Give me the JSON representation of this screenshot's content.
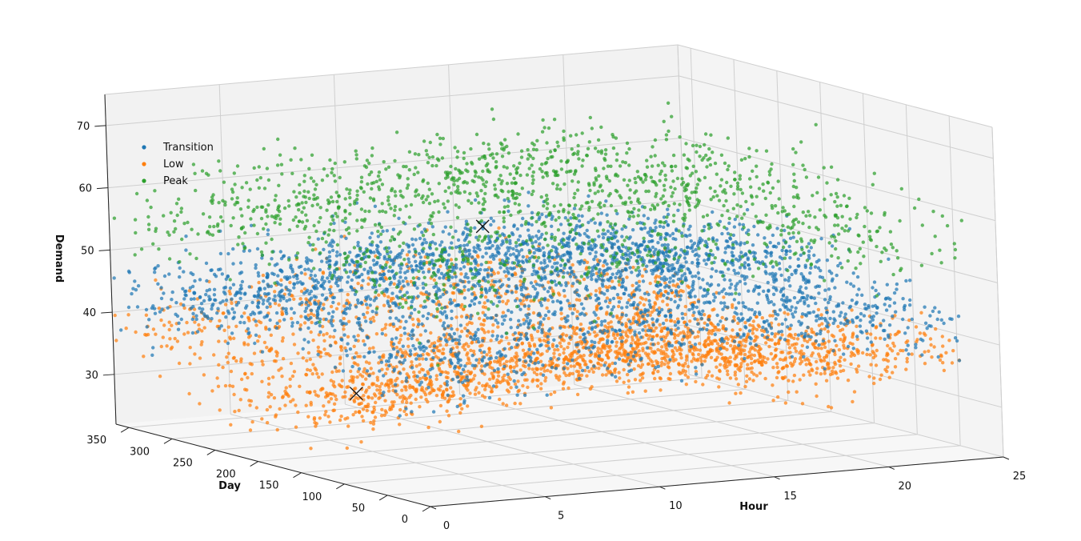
{
  "chart_data": {
    "type": "scatter",
    "title": "",
    "projection": "3d",
    "axes": {
      "x": {
        "label": "Hour",
        "ticks": [
          0,
          5,
          10,
          15,
          20,
          25
        ],
        "range": [
          0,
          25
        ]
      },
      "y": {
        "label": "Day",
        "ticks": [
          0,
          50,
          100,
          150,
          200,
          250,
          300,
          350
        ],
        "range": [
          0,
          365
        ]
      },
      "z": {
        "label": "Demand",
        "ticks": [
          30,
          40,
          50,
          60,
          70
        ],
        "range": [
          22,
          75
        ]
      }
    },
    "grid": true,
    "legend": {
      "position": "upper-left",
      "entries": [
        "Transition",
        "Low",
        "Peak"
      ]
    },
    "series": [
      {
        "name": "Transition",
        "color": "#1f77b4",
        "points": 2800,
        "demand_typical": [
          38,
          54
        ],
        "hour_range": [
          0,
          24
        ],
        "day_range": [
          0,
          365
        ]
      },
      {
        "name": "Low",
        "color": "#ff7f0e",
        "points": 2600,
        "demand_typical": [
          27,
          46
        ],
        "hour_range": [
          0,
          24
        ],
        "day_range": [
          0,
          365
        ]
      },
      {
        "name": "Peak",
        "color": "#2ca02c",
        "points": 1500,
        "demand_typical": [
          50,
          70
        ],
        "hour_range": [
          0,
          24
        ],
        "day_range": [
          0,
          365
        ]
      }
    ],
    "centroids": [
      {
        "series": "Peak",
        "hour": 9,
        "day": 170,
        "demand": 58,
        "marker": "x"
      },
      {
        "series": "Low",
        "hour": 4,
        "day": 190,
        "demand": 32,
        "marker": "x"
      }
    ]
  }
}
